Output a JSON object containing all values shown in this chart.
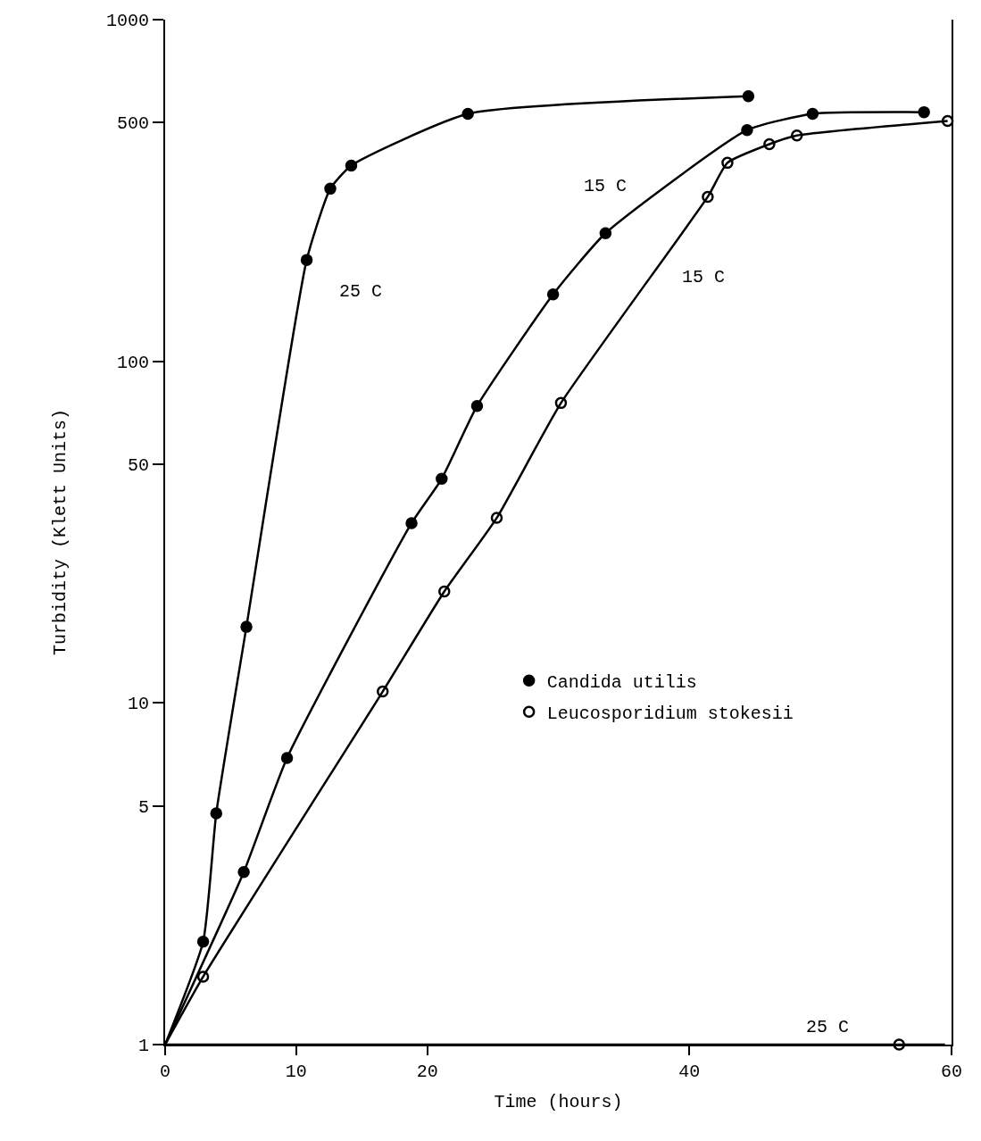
{
  "chart_data": {
    "type": "scatter",
    "xlabel": "Time (hours)",
    "ylabel": "Turbidity (Klett Units)",
    "log": "y",
    "grid": false,
    "legend": "right",
    "xlim": [
      0,
      60
    ],
    "xticks": [
      0,
      10,
      20,
      40,
      60
    ],
    "ylim": [
      1,
      1000
    ],
    "yticks": [
      1,
      5,
      10,
      50,
      100,
      500,
      1000
    ],
    "series": [
      {
        "name": "Candida utilis",
        "marker": "circle",
        "color": "#000000",
        "x": [
          2.9,
          3.9,
          6.2,
          10.8,
          12.6,
          14.2,
          23.1,
          44.5
        ],
        "values": [
          2.0,
          4.75,
          16.7,
          198,
          320,
          374,
          530,
          597
        ]
      },
      {
        "marker": "circle",
        "color": "#000000",
        "x": [
          6.0,
          9.3,
          18.8,
          21.1,
          23.8,
          29.6,
          33.6,
          44.4,
          49.4,
          57.9
        ],
        "values": [
          3.2,
          6.9,
          33.6,
          45.3,
          74,
          157,
          237,
          475,
          530,
          536
        ]
      },
      {
        "name": "Leucosporidium stokesii",
        "marker": "circle-open",
        "color": "#000000",
        "x": [
          2.9,
          16.6,
          21.3,
          25.3,
          30.2,
          41.4,
          42.9,
          46.1,
          48.2,
          59.7
        ],
        "values": [
          1.58,
          10.8,
          21.2,
          34.8,
          75.5,
          303,
          381,
          432,
          458,
          505
        ]
      },
      {
        "marker": "circle-open",
        "color": "#000000",
        "x": [
          56.0
        ],
        "values": [
          1.0
        ]
      },
      {
        "type": "line",
        "marker": "none",
        "line_style": "solid",
        "color": "#000000",
        "x": [
          0,
          2.9,
          3.9,
          6.2,
          10.8,
          12.6,
          14.2,
          23.1,
          44.5
        ],
        "values": [
          1,
          2.0,
          4.75,
          16.7,
          198,
          320,
          374,
          530,
          597
        ]
      },
      {
        "type": "line",
        "marker": "none",
        "line_style": "solid",
        "color": "#000000",
        "x": [
          0,
          6.0,
          9.3,
          18.8,
          21.1,
          23.8,
          29.6,
          33.6,
          44.4,
          49.4,
          57.9
        ],
        "values": [
          1,
          3.2,
          6.9,
          33.6,
          45.3,
          74,
          157,
          237,
          475,
          530,
          536
        ]
      },
      {
        "type": "line",
        "marker": "none",
        "line_style": "solid",
        "color": "#000000",
        "x": [
          0,
          2.9,
          16.6,
          21.3,
          25.3,
          30.2,
          41.4,
          42.9,
          46.1,
          48.2,
          59.7
        ],
        "values": [
          1,
          1.58,
          10.8,
          21.2,
          34.8,
          75.5,
          303,
          381,
          432,
          458,
          505
        ]
      },
      {
        "type": "line",
        "marker": "none",
        "line_style": "solid",
        "color": "#000000",
        "x": [
          0,
          56.0,
          59.5
        ],
        "values": [
          1,
          1.0,
          1.0
        ]
      }
    ],
    "annotations": [
      {
        "text": "25 C",
        "x": 10.8,
        "y": 198
      },
      {
        "text": "15 C",
        "x": 33.6,
        "y": 237
      },
      {
        "text": "15 C",
        "x": 37.0,
        "y": 176
      },
      {
        "text": "25 C",
        "x": 56.0,
        "y": 1.0
      }
    ]
  }
}
